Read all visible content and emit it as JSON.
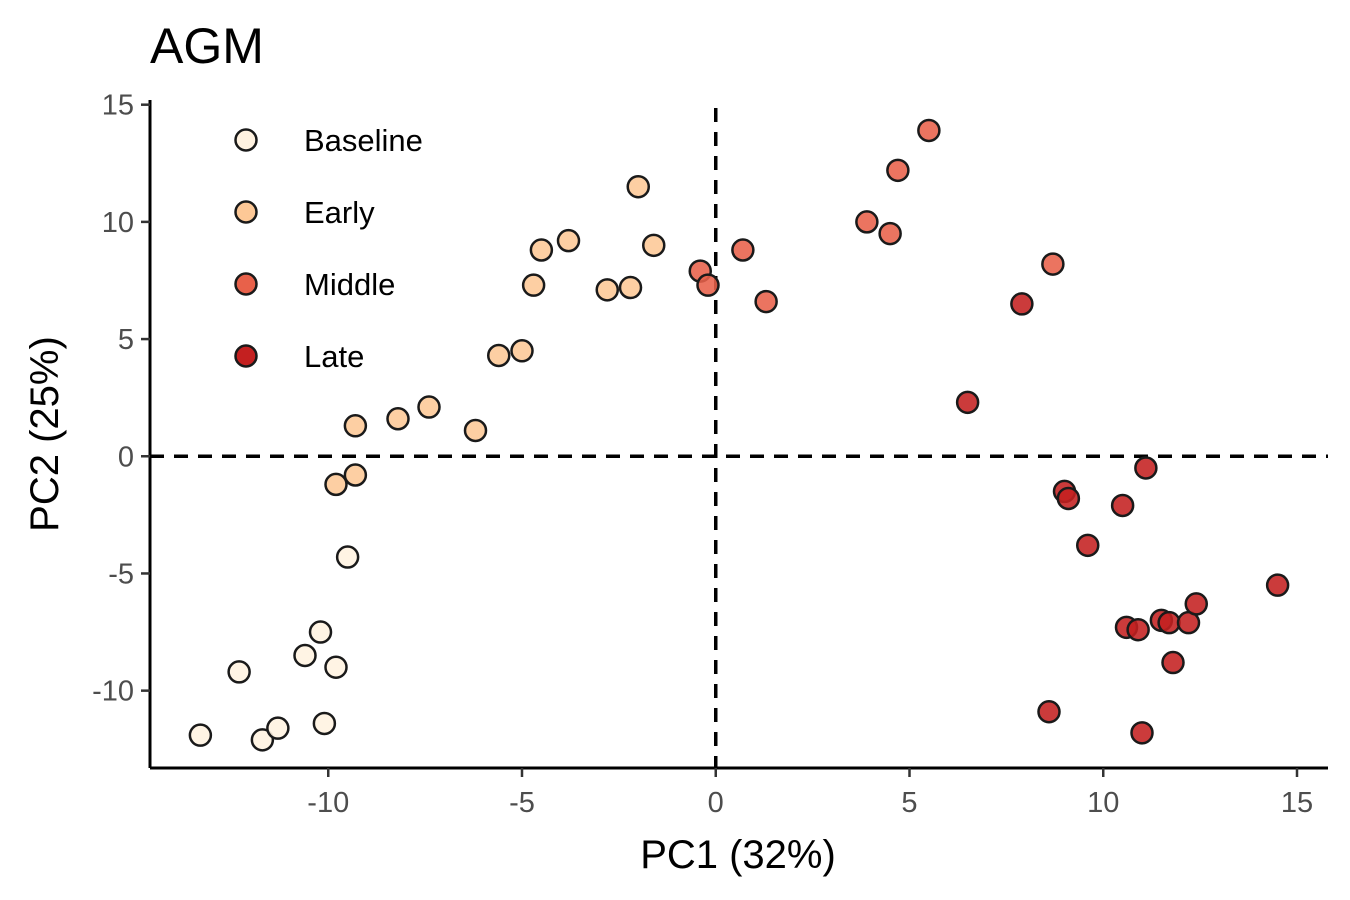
{
  "chart_data": {
    "type": "scatter",
    "title": "AGM",
    "xlabel": "PC1 (32%)",
    "ylabel": "PC2 (25%)",
    "xlim": [
      -14.6,
      15.8
    ],
    "ylim": [
      -13.3,
      15.2
    ],
    "xticks": [
      -10,
      -5,
      0,
      5,
      10,
      15
    ],
    "xtick_labels": [
      "-10",
      "-5",
      "0",
      "5",
      "10",
      "15"
    ],
    "yticks": [
      -10,
      -5,
      0,
      5,
      10,
      15
    ],
    "ytick_labels": [
      "-10",
      "-5",
      "0",
      "5",
      "10",
      "15"
    ],
    "reference_lines": {
      "x": 0,
      "y": 0,
      "style": "dashed"
    },
    "grid": false,
    "legend_position": "top-left",
    "series": [
      {
        "name": "Baseline",
        "color": "#fff2e0",
        "points": [
          {
            "x": -13.3,
            "y": -11.9
          },
          {
            "x": -12.3,
            "y": -9.2
          },
          {
            "x": -11.7,
            "y": -12.1
          },
          {
            "x": -11.3,
            "y": -11.6
          },
          {
            "x": -10.6,
            "y": -8.5
          },
          {
            "x": -10.2,
            "y": -7.5
          },
          {
            "x": -10.1,
            "y": -11.4
          },
          {
            "x": -9.8,
            "y": -9.0
          },
          {
            "x": -9.5,
            "y": -4.3
          }
        ]
      },
      {
        "name": "Early",
        "color": "#fdc896",
        "points": [
          {
            "x": -9.8,
            "y": -1.2
          },
          {
            "x": -9.3,
            "y": -0.8
          },
          {
            "x": -9.3,
            "y": 1.3
          },
          {
            "x": -8.2,
            "y": 1.6
          },
          {
            "x": -7.4,
            "y": 2.1
          },
          {
            "x": -6.2,
            "y": 1.1
          },
          {
            "x": -5.6,
            "y": 4.3
          },
          {
            "x": -5.0,
            "y": 4.5
          },
          {
            "x": -4.7,
            "y": 7.3
          },
          {
            "x": -4.5,
            "y": 8.8
          },
          {
            "x": -3.8,
            "y": 9.2
          },
          {
            "x": -2.8,
            "y": 7.1
          },
          {
            "x": -2.2,
            "y": 7.2
          },
          {
            "x": -2.0,
            "y": 11.5
          },
          {
            "x": -1.6,
            "y": 9.0
          }
        ]
      },
      {
        "name": "Middle",
        "color": "#e8614a",
        "points": [
          {
            "x": -0.4,
            "y": 7.9
          },
          {
            "x": -0.2,
            "y": 7.3
          },
          {
            "x": 0.7,
            "y": 8.8
          },
          {
            "x": 1.3,
            "y": 6.6
          },
          {
            "x": 3.9,
            "y": 10.0
          },
          {
            "x": 4.5,
            "y": 9.5
          },
          {
            "x": 4.7,
            "y": 12.2
          },
          {
            "x": 5.5,
            "y": 13.9
          },
          {
            "x": 8.7,
            "y": 8.2
          }
        ]
      },
      {
        "name": "Late",
        "color": "#c42020",
        "points": [
          {
            "x": 6.5,
            "y": 2.3
          },
          {
            "x": 7.9,
            "y": 6.5
          },
          {
            "x": 8.6,
            "y": -10.9
          },
          {
            "x": 9.0,
            "y": -1.5
          },
          {
            "x": 9.1,
            "y": -1.8
          },
          {
            "x": 9.6,
            "y": -3.8
          },
          {
            "x": 10.5,
            "y": -2.1
          },
          {
            "x": 10.6,
            "y": -7.3
          },
          {
            "x": 10.9,
            "y": -7.4
          },
          {
            "x": 11.0,
            "y": -11.8
          },
          {
            "x": 11.1,
            "y": -0.5
          },
          {
            "x": 11.5,
            "y": -7.0
          },
          {
            "x": 11.7,
            "y": -7.1
          },
          {
            "x": 11.8,
            "y": -8.8
          },
          {
            "x": 12.2,
            "y": -7.1
          },
          {
            "x": 12.4,
            "y": -6.3
          },
          {
            "x": 14.5,
            "y": -5.5
          }
        ]
      }
    ]
  }
}
